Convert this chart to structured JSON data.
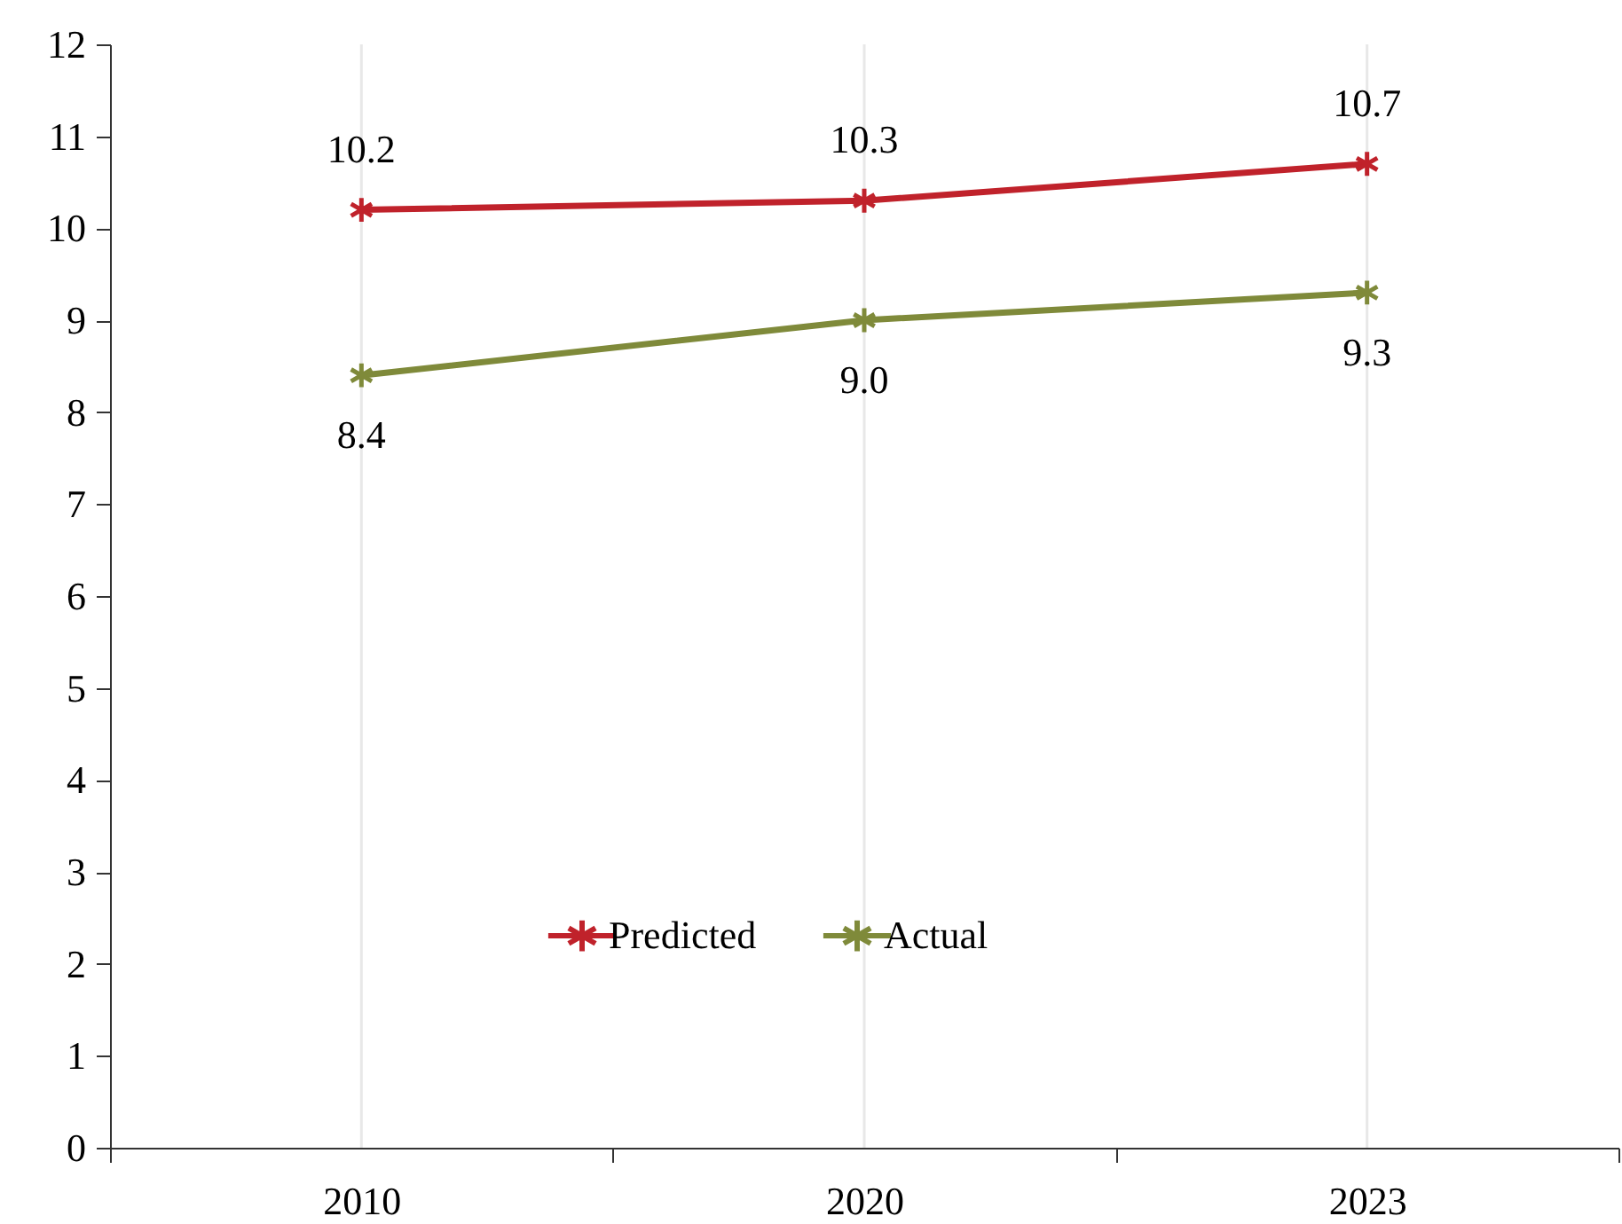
{
  "chart_data": {
    "type": "line",
    "categories": [
      "2010",
      "2020",
      "2023"
    ],
    "series": [
      {
        "name": "Predicted",
        "color": "#c0222b",
        "values": [
          10.2,
          10.3,
          10.7
        ],
        "value_labels": [
          "10.2",
          "10.3",
          "10.7"
        ]
      },
      {
        "name": "Actual",
        "color": "#7f8a3a",
        "values": [
          8.4,
          9.0,
          9.3
        ],
        "value_labels": [
          "8.4",
          "9.0",
          "9.3"
        ]
      }
    ],
    "ylim": [
      0,
      12
    ],
    "yticks": [
      0,
      1,
      2,
      3,
      4,
      5,
      6,
      7,
      8,
      9,
      10,
      11,
      12
    ],
    "grid": "x",
    "legend": "bottom",
    "marker": "cross",
    "line_style": "solid"
  }
}
